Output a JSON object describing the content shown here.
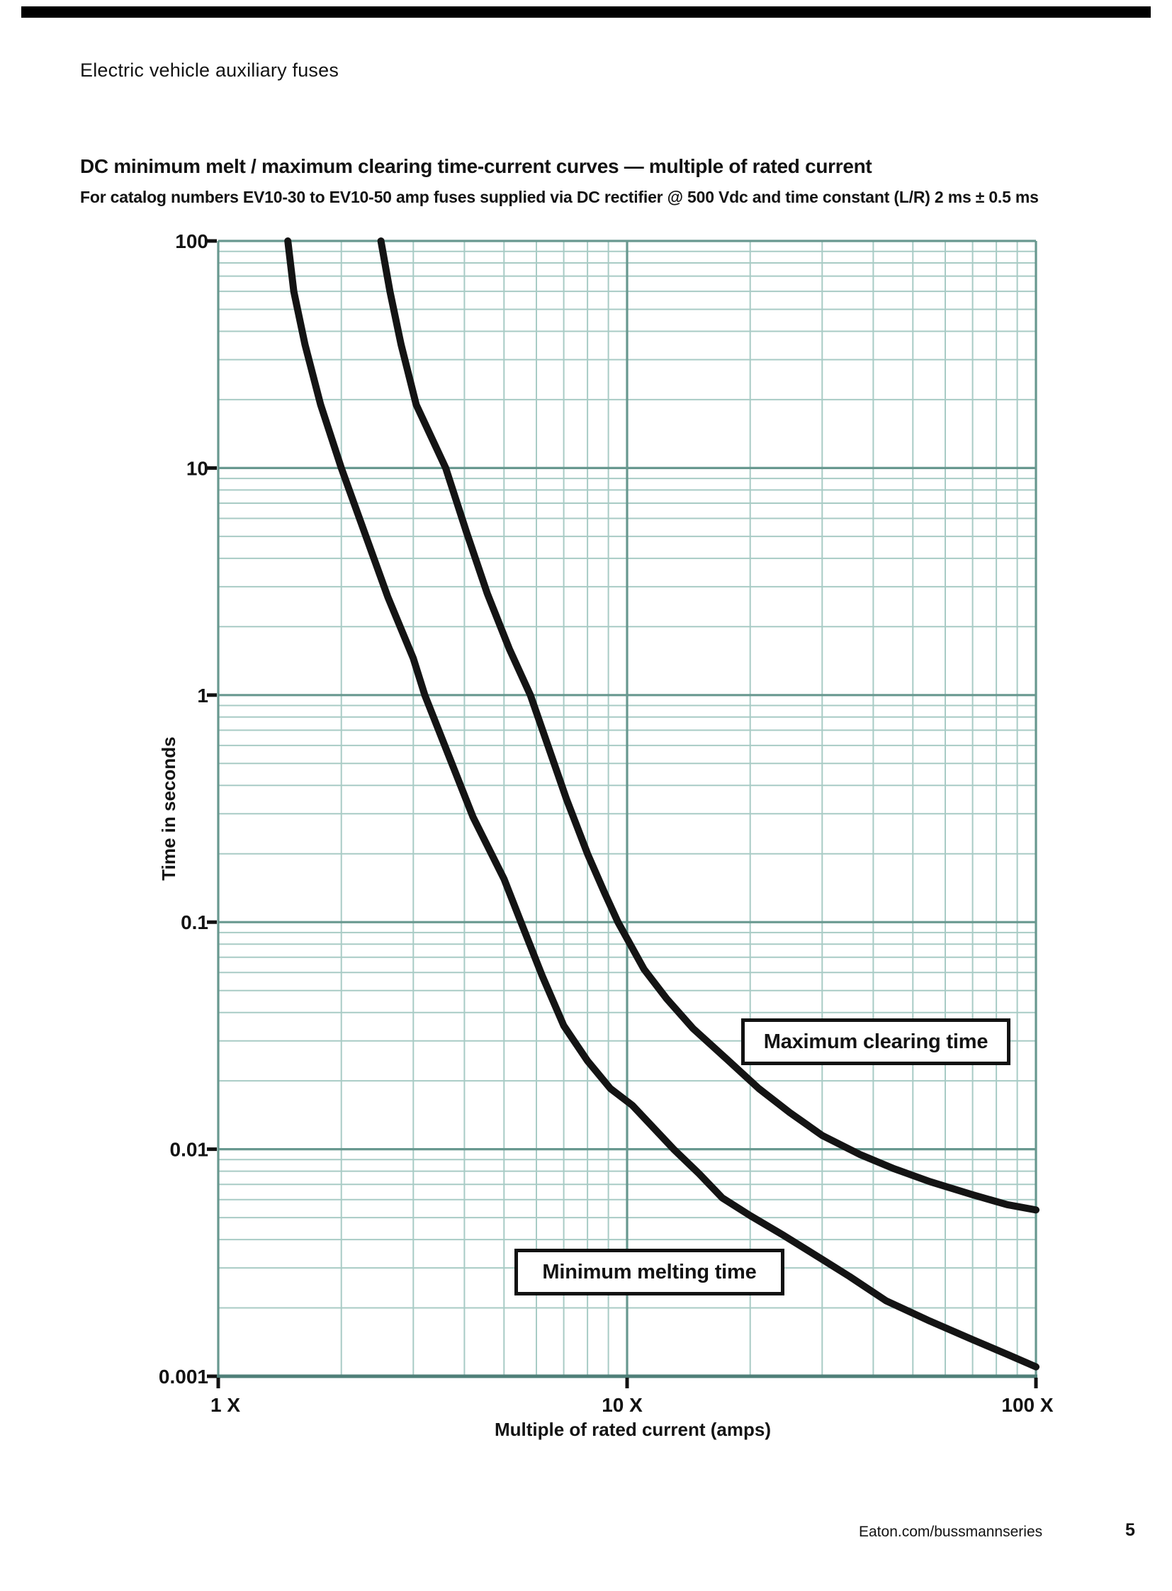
{
  "page": {
    "header": "Electric vehicle auxiliary fuses",
    "footer": {
      "url": "Eaton.com/bussmannseries",
      "page_number": "5"
    }
  },
  "section": {
    "title": "DC minimum melt / maximum clearing time-current curves — multiple of rated current",
    "subtitle": "For catalog numbers EV10-30 to EV10-50 amp fuses supplied via DC rectifier @ 500 Vdc and time constant (L/R) 2 ms ± 0.5 ms"
  },
  "chart_data": {
    "type": "line",
    "title": "DC minimum melt / maximum clearing time-current curves — multiple of rated current",
    "xlabel": "Multiple of rated current (amps)",
    "ylabel": "Time in seconds",
    "x_scale": "log",
    "y_scale": "log",
    "xlim": [
      1,
      100
    ],
    "ylim": [
      0.001,
      100
    ],
    "grid": {
      "on": true,
      "minor_color": "#a8cbc5",
      "major_color": "#68988f",
      "axis_color": "#4f7f78"
    },
    "curve_color": "#141414",
    "legend_position": "none",
    "x_ticks": [
      {
        "value": 1,
        "label": "1 X"
      },
      {
        "value": 10,
        "label": "10 X"
      },
      {
        "value": 100,
        "label": "100 X"
      }
    ],
    "y_ticks": [
      {
        "value": 100,
        "label": "100"
      },
      {
        "value": 10,
        "label": "10"
      },
      {
        "value": 1,
        "label": "1"
      },
      {
        "value": 0.1,
        "label": "0.1"
      },
      {
        "value": 0.01,
        "label": "0.01"
      },
      {
        "value": 0.001,
        "label": "0.001"
      }
    ],
    "series": [
      {
        "name": "Minimum melting time",
        "points": [
          [
            1.48,
            100
          ],
          [
            1.53,
            60
          ],
          [
            1.63,
            35
          ],
          [
            1.78,
            19
          ],
          [
            2.0,
            10
          ],
          [
            2.28,
            5.2
          ],
          [
            2.6,
            2.7
          ],
          [
            3.0,
            1.45
          ],
          [
            3.2,
            1.0
          ],
          [
            3.65,
            0.55
          ],
          [
            4.2,
            0.29
          ],
          [
            5.0,
            0.155
          ],
          [
            5.5,
            0.1
          ],
          [
            6.2,
            0.058
          ],
          [
            7.0,
            0.035
          ],
          [
            8.0,
            0.0245
          ],
          [
            9.1,
            0.0185
          ],
          [
            10.3,
            0.0156
          ],
          [
            13,
            0.01
          ],
          [
            15,
            0.0078
          ],
          [
            17.1,
            0.0061
          ],
          [
            20,
            0.0051
          ],
          [
            24,
            0.0042
          ],
          [
            29,
            0.0034
          ],
          [
            35,
            0.00275
          ],
          [
            43,
            0.00215
          ],
          [
            55,
            0.00175
          ],
          [
            70,
            0.00145
          ],
          [
            85,
            0.00125
          ],
          [
            100,
            0.0011
          ]
        ]
      },
      {
        "name": "Maximum clearing time",
        "points": [
          [
            2.5,
            100
          ],
          [
            2.63,
            60
          ],
          [
            2.8,
            35
          ],
          [
            3.05,
            19
          ],
          [
            3.6,
            10
          ],
          [
            4.05,
            5.2
          ],
          [
            4.55,
            2.8
          ],
          [
            5.15,
            1.6
          ],
          [
            5.8,
            1.0
          ],
          [
            6.4,
            0.6
          ],
          [
            7.1,
            0.35
          ],
          [
            8.0,
            0.2
          ],
          [
            8.8,
            0.135
          ],
          [
            9.5,
            0.1
          ],
          [
            11,
            0.062
          ],
          [
            12.5,
            0.046
          ],
          [
            14.5,
            0.034
          ],
          [
            17.5,
            0.025
          ],
          [
            21,
            0.0185
          ],
          [
            25,
            0.0145
          ],
          [
            30,
            0.0115
          ],
          [
            37,
            0.0095
          ],
          [
            45,
            0.0082
          ],
          [
            55,
            0.0072
          ],
          [
            70,
            0.0063
          ],
          [
            85,
            0.0057
          ],
          [
            100,
            0.0054
          ]
        ]
      }
    ],
    "annotations": [
      {
        "text": "Maximum clearing time"
      },
      {
        "text": "Minimum melting time"
      }
    ]
  }
}
